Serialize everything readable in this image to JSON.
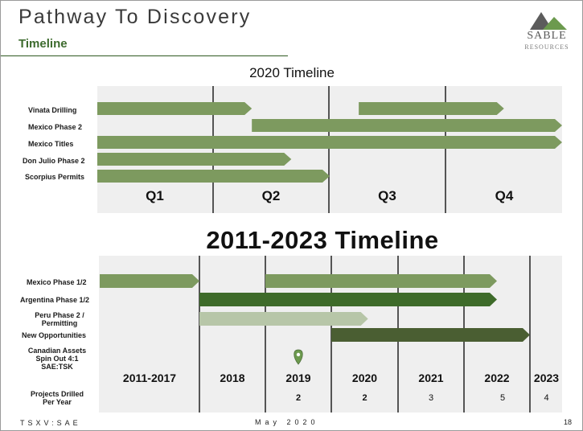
{
  "header": {
    "title": "Pathway To Discovery",
    "subtitle": "Timeline"
  },
  "logo": {
    "name": "SABLE",
    "sub": "RESOURCES",
    "colors": {
      "mountain_dark": "#5c5c5c",
      "mountain_green": "#6c9a4e"
    }
  },
  "timeline_2020": {
    "heading": "2020 Timeline",
    "columns": [
      "Q1",
      "Q2",
      "Q3",
      "Q4"
    ],
    "rows": [
      {
        "label": "Vinata Drilling"
      },
      {
        "label": "Mexico Phase 2"
      },
      {
        "label": "Mexico Titles"
      },
      {
        "label": "Don Julio Phase 2"
      },
      {
        "label": "Scorpius Permits"
      }
    ],
    "bars": [
      {
        "row": 0,
        "start": 0.0,
        "end": 1.33,
        "color": "#7d9a5f"
      },
      {
        "row": 0,
        "start": 2.25,
        "end": 3.5,
        "color": "#7d9a5f"
      },
      {
        "row": 1,
        "start": 1.33,
        "end": 4.0,
        "color": "#7d9a5f"
      },
      {
        "row": 2,
        "start": 0.0,
        "end": 4.0,
        "color": "#7d9a5f"
      },
      {
        "row": 3,
        "start": 0.0,
        "end": 1.67,
        "color": "#7d9a5f"
      },
      {
        "row": 4,
        "start": 0.0,
        "end": 2.0,
        "color": "#7d9a5f"
      }
    ]
  },
  "timeline_2011_2023": {
    "heading": "2011-2023 Timeline",
    "columns": [
      "2011-2017",
      "2018",
      "2019",
      "2020",
      "2021",
      "2022",
      "2023"
    ],
    "rows": [
      {
        "label": "Mexico Phase 1/2"
      },
      {
        "label": "Argentina Phase 1/2"
      },
      {
        "label": "Peru Phase 2 / Permitting"
      },
      {
        "label": "New Opportunities"
      },
      {
        "label": "Canadian Assets Spin Out 4:1 SAE:TSK"
      }
    ],
    "bars": [
      {
        "row": 0,
        "start": 0.0,
        "end": 1.0,
        "color": "#7d9a5f"
      },
      {
        "row": 0,
        "start": 2.0,
        "end": 5.5,
        "color": "#7d9a5f"
      },
      {
        "row": 1,
        "start": 1.0,
        "end": 5.5,
        "color": "#3e6b2a"
      },
      {
        "row": 2,
        "start": 1.0,
        "end": 3.55,
        "color": "#b7c6a8"
      },
      {
        "row": 3,
        "start": 3.0,
        "end": 6.0,
        "color": "#4a5e32"
      }
    ],
    "milestone": {
      "row": 4,
      "at": 2.5,
      "icon": "map-pin-icon",
      "color": "#6c9a4e"
    },
    "projects_label": "Projects Drilled Per Year",
    "projects_counts": [
      "",
      "",
      "2",
      "2",
      "3",
      "5",
      "4"
    ]
  },
  "footer": {
    "ticker": "TSXV:SAE",
    "date": "May 2020",
    "page": "18"
  }
}
